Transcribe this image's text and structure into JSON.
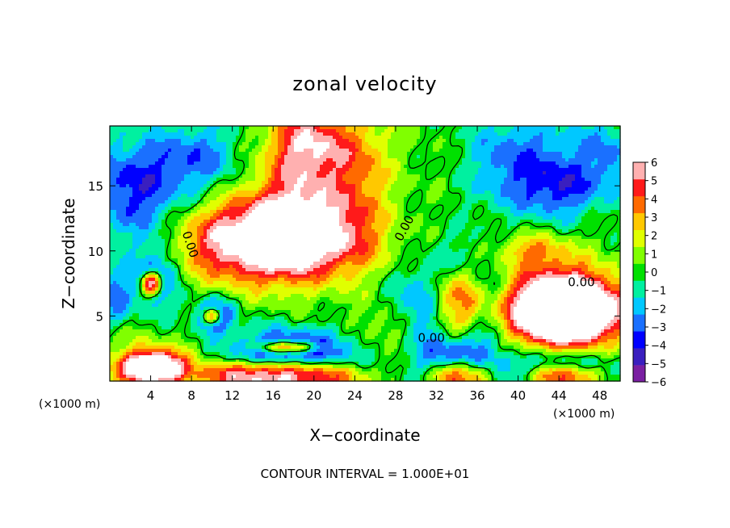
{
  "chart_data": {
    "type": "heatmap",
    "title": "zonal velocity",
    "xlabel": "X−coordinate",
    "ylabel": "Z−coordinate",
    "x_unit_left": "(×1000 m)",
    "x_unit_right": "(×1000 m)",
    "footer": "CONTOUR INTERVAL = 1.000E+01",
    "xlim": [
      0,
      50
    ],
    "ylim": [
      0,
      19.6
    ],
    "xticks": [
      4,
      8,
      12,
      16,
      20,
      24,
      28,
      32,
      36,
      40,
      44,
      48
    ],
    "xtick_labels": [
      "4",
      "8",
      "12",
      "16",
      "20",
      "24",
      "28",
      "32",
      "36",
      "40",
      "44",
      "48"
    ],
    "yticks": [
      5,
      10,
      15
    ],
    "ytick_labels": [
      "5",
      "10",
      "15"
    ],
    "colorbar": {
      "min": -6,
      "max": 6,
      "ticks": [
        6,
        5,
        4,
        3,
        2,
        1,
        0,
        -1,
        -2,
        -3,
        -4,
        -5,
        -6
      ],
      "tick_labels": [
        "6",
        "5",
        "4",
        "3",
        "2",
        "1",
        "0",
        "−1",
        "−2",
        "−3",
        "−4",
        "−5",
        "−6"
      ],
      "colors": [
        "#7a1fa2",
        "#3a1fbf",
        "#0000ff",
        "#1a70ff",
        "#00c8ff",
        "#00f0a0",
        "#00e000",
        "#80ff00",
        "#e0ff00",
        "#ffc800",
        "#ff6a00",
        "#ff1a1a",
        "#ffb0b0"
      ]
    },
    "contour_labels": [
      {
        "text": "0.00",
        "x": 7.5,
        "y": 10.4,
        "angle": 72
      },
      {
        "text": "0.00",
        "x": 29.2,
        "y": 11.6,
        "angle": -62
      },
      {
        "text": "0.00",
        "x": 31.5,
        "y": 3.0,
        "angle": 0
      },
      {
        "text": "0.00",
        "x": 46.2,
        "y": 7.3,
        "angle": 0
      }
    ],
    "features": [
      {
        "x": 15.5,
        "y": 10.8,
        "rx": 8.5,
        "ry": 3.3,
        "v": 7.5,
        "shape": 2.5
      },
      {
        "x": 18.5,
        "y": 15.2,
        "rx": 4.0,
        "ry": 5.0,
        "v": 4.0,
        "shape": 2
      },
      {
        "x": 20.0,
        "y": 18.5,
        "rx": 3.5,
        "ry": 2.5,
        "v": 3.5,
        "shape": 2
      },
      {
        "x": 24.0,
        "y": 13.5,
        "rx": 3.5,
        "ry": 5.0,
        "v": 2.5,
        "shape": 2
      },
      {
        "x": 25.0,
        "y": 17.5,
        "rx": 2.5,
        "ry": 3.0,
        "v": 1.5,
        "shape": 2
      },
      {
        "x": 2.5,
        "y": 14.8,
        "rx": 5.5,
        "ry": 4.0,
        "v": -4.0,
        "shape": 2
      },
      {
        "x": 9.0,
        "y": 17.5,
        "rx": 4.0,
        "ry": 2.5,
        "v": -2.5,
        "shape": 2
      },
      {
        "x": 4.5,
        "y": 8.0,
        "rx": 2.2,
        "ry": 2.6,
        "v": -3.5,
        "shape": 2
      },
      {
        "x": 4.1,
        "y": 7.5,
        "rx": 1.0,
        "ry": 0.9,
        "v": 8.0,
        "shape": 2.5
      },
      {
        "x": 10.2,
        "y": 5.0,
        "rx": 2.0,
        "ry": 1.3,
        "v": -4.5,
        "shape": 2
      },
      {
        "x": 10.0,
        "y": 5.0,
        "rx": 0.9,
        "ry": 0.6,
        "v": 7.0,
        "shape": 2.5
      },
      {
        "x": 18.0,
        "y": 2.3,
        "rx": 6.0,
        "ry": 1.7,
        "v": -5.0,
        "shape": 2
      },
      {
        "x": 17.5,
        "y": 2.6,
        "rx": 3.0,
        "ry": 0.45,
        "v": 7.0,
        "shape": 2.5
      },
      {
        "x": 16.5,
        "y": 0.4,
        "rx": 7.5,
        "ry": 1.2,
        "v": 7.0,
        "shape": 2.5
      },
      {
        "x": 4.0,
        "y": 1.3,
        "rx": 4.5,
        "ry": 1.8,
        "v": 3.0,
        "shape": 2
      },
      {
        "x": 4.2,
        "y": 1.0,
        "rx": 3.0,
        "ry": 1.2,
        "v": 6.5,
        "shape": 2.5
      },
      {
        "x": 34.0,
        "y": 5.8,
        "rx": 3.8,
        "ry": 3.8,
        "v": -4.5,
        "shape": 2
      },
      {
        "x": 34.0,
        "y": 6.0,
        "rx": 2.6,
        "ry": 2.7,
        "v": 7.5,
        "shape": 2.5
      },
      {
        "x": 34.5,
        "y": 1.0,
        "rx": 4.5,
        "ry": 2.0,
        "v": -4.0,
        "shape": 2
      },
      {
        "x": 34.5,
        "y": 0.4,
        "rx": 3.2,
        "ry": 1.3,
        "v": 7.5,
        "shape": 2.5
      },
      {
        "x": 44.5,
        "y": 5.5,
        "rx": 6.5,
        "ry": 3.5,
        "v": 4.5,
        "shape": 2.5
      },
      {
        "x": 44.5,
        "y": 5.5,
        "rx": 5.2,
        "ry": 2.6,
        "v": 7.5,
        "shape": 2.5
      },
      {
        "x": 44.5,
        "y": 0.6,
        "rx": 5.5,
        "ry": 1.7,
        "v": -4.5,
        "shape": 2
      },
      {
        "x": 44.5,
        "y": 0.3,
        "rx": 4.0,
        "ry": 1.0,
        "v": 7.5,
        "shape": 2.5
      },
      {
        "x": 41.5,
        "y": 10.0,
        "rx": 3.5,
        "ry": 1.3,
        "v": 3.0,
        "shape": 2
      },
      {
        "x": 38.5,
        "y": 16.5,
        "rx": 3.8,
        "ry": 3.5,
        "v": -2.5,
        "shape": 2
      },
      {
        "x": 44.0,
        "y": 15.0,
        "rx": 4.0,
        "ry": 2.5,
        "v": -4.0,
        "shape": 2
      },
      {
        "x": 49.0,
        "y": 17.0,
        "rx": 2.5,
        "ry": 3.0,
        "v": -2.0,
        "shape": 2
      },
      {
        "x": 44.0,
        "y": 18.5,
        "rx": 6.0,
        "ry": 2.0,
        "v": -1.5,
        "shape": 2
      },
      {
        "x": 30.0,
        "y": 6.0,
        "rx": 3.5,
        "ry": 2.5,
        "v": -1.5,
        "shape": 2
      },
      {
        "x": 27.0,
        "y": 4.0,
        "rx": 2.5,
        "ry": 1.8,
        "v": 1.5,
        "shape": 2
      },
      {
        "x": 0.6,
        "y": 6.5,
        "rx": 1.5,
        "ry": 2.0,
        "v": -3.0,
        "shape": 2
      }
    ]
  }
}
